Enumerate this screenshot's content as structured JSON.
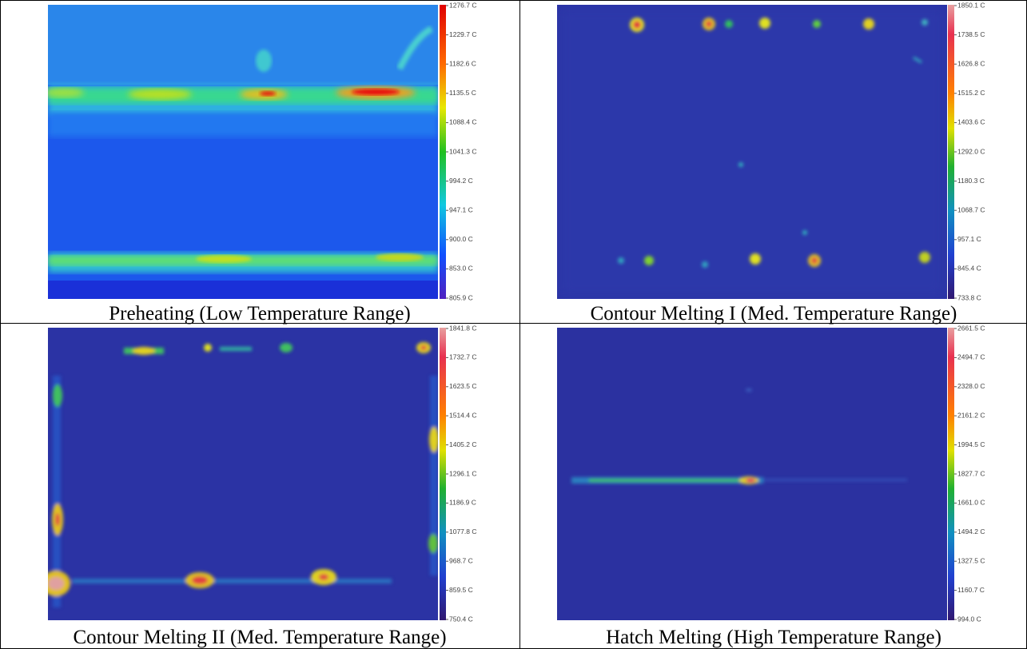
{
  "panels": [
    {
      "caption": "Preheating (Low Temperature Range)",
      "scale_labels": [
        "1276.7 C",
        "1229.7 C",
        "1182.6 C",
        "1135.5 C",
        "1088.4 C",
        "1041.3 C",
        "994.2 C",
        "947.1 C",
        "900.0 C",
        "853.0 C",
        "805.9 C"
      ]
    },
    {
      "caption": "Contour Melting I (Med. Temperature Range)",
      "scale_labels": [
        "1850.1 C",
        "1738.5 C",
        "1626.8 C",
        "1515.2 C",
        "1403.6 C",
        "1292.0 C",
        "1180.3 C",
        "1068.7 C",
        "957.1 C",
        "845.4 C",
        "733.8 C"
      ]
    },
    {
      "caption": "Contour Melting II (Med. Temperature Range)",
      "scale_labels": [
        "1841.8 C",
        "1732.7 C",
        "1623.5 C",
        "1514.4 C",
        "1405.2 C",
        "1296.1 C",
        "1186.9 C",
        "1077.8 C",
        "968.7 C",
        "859.5 C",
        "750.4 C"
      ]
    },
    {
      "caption": "Hatch Melting (High Temperature Range)",
      "scale_labels": [
        "2661.5 C",
        "2494.7 C",
        "2328.0 C",
        "2161.2 C",
        "1994.5 C",
        "1827.7 C",
        "1661.0 C",
        "1494.2 C",
        "1327.5 C",
        "1160.7 C",
        "994.0 C"
      ]
    }
  ]
}
